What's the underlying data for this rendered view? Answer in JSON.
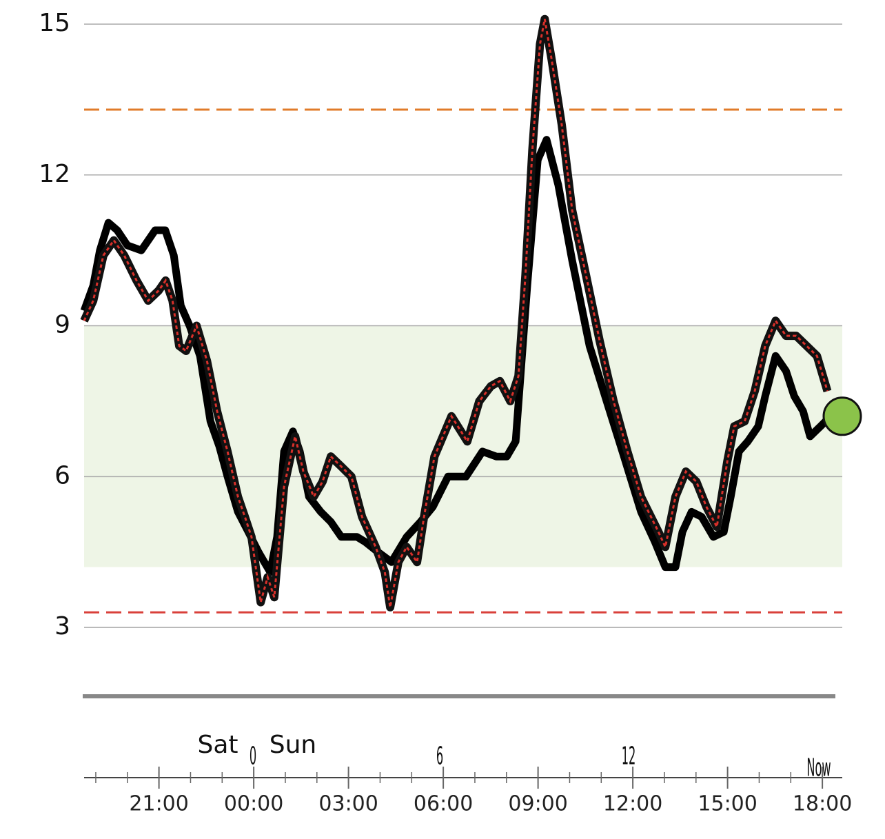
{
  "chart_data": {
    "type": "line",
    "xlim": [
      -5.37,
      18.63
    ],
    "ylim": [
      1.63,
      15.48
    ],
    "yticks": [
      3,
      6,
      9,
      12,
      15
    ],
    "xticks": [
      {
        "value": -3,
        "label": "21:00"
      },
      {
        "value": 0,
        "label": "00:00"
      },
      {
        "value": 3,
        "label": "03:00"
      },
      {
        "value": 6,
        "label": "06:00"
      },
      {
        "value": 9,
        "label": "09:00"
      },
      {
        "value": 12,
        "label": "12:00"
      },
      {
        "value": 15,
        "label": "15:00"
      },
      {
        "value": 18,
        "label": "18:00"
      }
    ],
    "xminorticks": [
      -5,
      -4,
      -3,
      -2,
      -1,
      0,
      1,
      2,
      3,
      4,
      5,
      6,
      7,
      8,
      9,
      10,
      11,
      12,
      13,
      14,
      15,
      16,
      17,
      18
    ],
    "grid": true,
    "target_range": {
      "low": 4.2,
      "high": 9,
      "color": "#eef5e6"
    },
    "thresholds": [
      {
        "value": 13.3,
        "color": "#e07b2a"
      },
      {
        "value": 3.3,
        "color": "#d9403a"
      }
    ],
    "annotations": [
      "Sat",
      "Sun",
      "0",
      "6",
      "12",
      "Now"
    ],
    "series": [
      {
        "color": "#000000",
        "x": [
          -5.37,
          -5.08,
          -4.87,
          -4.6,
          -4.32,
          -4.0,
          -3.56,
          -3.12,
          -2.8,
          -2.53,
          -2.31,
          -2.03,
          -1.7,
          -1.37,
          -1.09,
          -0.83,
          -0.5,
          -0.17,
          0.15,
          0.52,
          0.74,
          0.96,
          1.24,
          1.46,
          1.75,
          2.12,
          2.44,
          2.77,
          3.27,
          3.53,
          3.93,
          4.36,
          4.84,
          5.28,
          5.67,
          6.15,
          6.72,
          7.24,
          7.68,
          8.01,
          8.29,
          8.66,
          8.99,
          9.27,
          9.64,
          10.08,
          10.63,
          11.17,
          11.72,
          12.26,
          12.7,
          13.03,
          13.35,
          13.57,
          13.86,
          14.18,
          14.55,
          14.88,
          15.1,
          15.36,
          15.64,
          15.97,
          16.19,
          16.52,
          16.85,
          17.11,
          17.39,
          17.61,
          17.94,
          18.26
        ],
        "values": [
          9.3,
          9.8,
          10.5,
          11.05,
          10.9,
          10.6,
          10.5,
          10.9,
          10.9,
          10.4,
          9.4,
          9.0,
          8.4,
          7.1,
          6.6,
          6.0,
          5.3,
          4.9,
          4.5,
          4.1,
          4.8,
          6.5,
          6.9,
          6.5,
          5.6,
          5.3,
          5.1,
          4.8,
          4.8,
          4.7,
          4.5,
          4.3,
          4.8,
          5.1,
          5.4,
          6.0,
          6.0,
          6.5,
          6.4,
          6.4,
          6.7,
          9.8,
          12.3,
          12.7,
          11.8,
          10.3,
          8.6,
          7.5,
          6.4,
          5.3,
          4.7,
          4.2,
          4.2,
          4.9,
          5.3,
          5.2,
          4.8,
          4.9,
          5.6,
          6.5,
          6.7,
          7.0,
          7.6,
          8.4,
          8.1,
          7.6,
          7.3,
          6.8,
          7.0,
          7.2
        ]
      },
      {
        "color": "#d9302a",
        "x": [
          -5.37,
          -5.08,
          -4.76,
          -4.43,
          -4.1,
          -3.71,
          -3.34,
          -3.01,
          -2.79,
          -2.57,
          -2.36,
          -2.14,
          -1.81,
          -1.48,
          -1.16,
          -0.83,
          -0.5,
          -0.28,
          -0.07,
          0.22,
          0.44,
          0.65,
          0.96,
          1.31,
          1.57,
          1.9,
          2.18,
          2.44,
          2.77,
          3.09,
          3.43,
          3.86,
          4.15,
          4.32,
          4.58,
          4.84,
          5.17,
          5.39,
          5.72,
          6.26,
          6.76,
          7.14,
          7.51,
          7.79,
          8.12,
          8.38,
          8.6,
          8.82,
          9.06,
          9.21,
          9.43,
          9.75,
          10.08,
          10.52,
          10.95,
          11.39,
          11.83,
          12.26,
          12.81,
          13.03,
          13.35,
          13.68,
          14.01,
          14.33,
          14.66,
          14.99,
          15.21,
          15.54,
          15.86,
          16.19,
          16.52,
          16.85,
          17.17,
          17.5,
          17.83,
          18.16
        ],
        "values": [
          9.1,
          9.5,
          10.4,
          10.7,
          10.4,
          9.9,
          9.5,
          9.7,
          9.9,
          9.5,
          8.6,
          8.5,
          9.0,
          8.3,
          7.3,
          6.5,
          5.6,
          5.2,
          4.8,
          3.5,
          4.0,
          3.6,
          5.8,
          6.8,
          6.1,
          5.6,
          5.9,
          6.4,
          6.2,
          6.0,
          5.2,
          4.6,
          4.1,
          3.4,
          4.3,
          4.6,
          4.3,
          5.2,
          6.4,
          7.2,
          6.7,
          7.5,
          7.8,
          7.9,
          7.5,
          8.0,
          10.0,
          12.5,
          14.6,
          15.1,
          14.3,
          13.0,
          11.3,
          10.0,
          8.7,
          7.5,
          6.5,
          5.6,
          4.9,
          4.6,
          5.6,
          6.1,
          5.9,
          5.4,
          5.0,
          6.3,
          7.0,
          7.1,
          7.7,
          8.6,
          9.1,
          8.8,
          8.8,
          8.6,
          8.4,
          7.7
        ]
      }
    ],
    "current": {
      "x": 18.63,
      "value": 7.2,
      "color": "#8bc34a"
    }
  }
}
